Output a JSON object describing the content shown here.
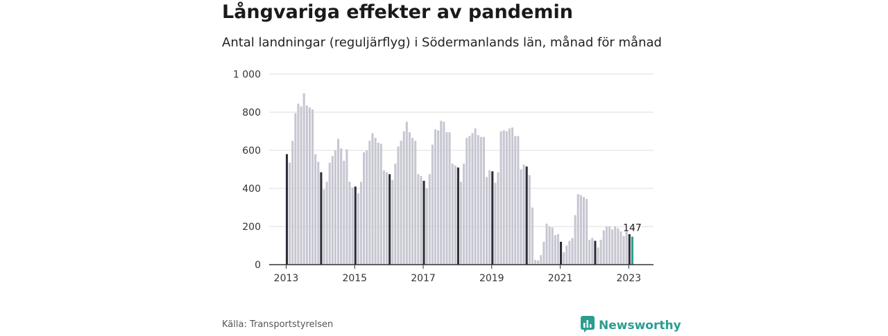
{
  "title": "Långvariga effekter av pandemin",
  "subtitle": "Antal landningar (reguljärflyg) i Södermanlands län, månad för månad",
  "source": "Källa: Transportstyrelsen",
  "brand": {
    "name": "Newsworthy",
    "icon": "newsworthy-logo-icon"
  },
  "colors": {
    "bar": "#c7c7d2",
    "january": "#2e2e38",
    "latest": "#2a9d8f",
    "grid": "#dddddd",
    "axis": "#333333"
  },
  "chart_data": {
    "type": "bar",
    "x_start": "2013-01",
    "x_tick_labels": [
      "2013",
      "2015",
      "2017",
      "2019",
      "2021",
      "2023"
    ],
    "ylim": [
      0,
      1000
    ],
    "y_ticks": [
      0,
      200,
      400,
      600,
      800,
      1000
    ],
    "y_tick_labels": [
      "0",
      "200",
      "400",
      "600",
      "800",
      "1 000"
    ],
    "grid": true,
    "series": [
      {
        "values": [
          580,
          535,
          650,
          795,
          845,
          830,
          900,
          835,
          825,
          815,
          580,
          540,
          485,
          395,
          435,
          535,
          570,
          600,
          660,
          610,
          545,
          605,
          435,
          405,
          410,
          375,
          435,
          590,
          600,
          650,
          690,
          665,
          640,
          635,
          495,
          485,
          475,
          445,
          530,
          620,
          650,
          700,
          750,
          695,
          665,
          650,
          475,
          465,
          440,
          400,
          475,
          630,
          710,
          705,
          755,
          750,
          695,
          695,
          530,
          520,
          510,
          435,
          530,
          665,
          675,
          690,
          715,
          680,
          670,
          670,
          460,
          495,
          490,
          430,
          485,
          700,
          705,
          700,
          715,
          720,
          675,
          675,
          500,
          525,
          515,
          470,
          300,
          25,
          22,
          50,
          120,
          215,
          200,
          195,
          155,
          160,
          120,
          65,
          100,
          125,
          140,
          260,
          370,
          365,
          355,
          345,
          130,
          140,
          125,
          90,
          130,
          180,
          200,
          200,
          185,
          200,
          190,
          175,
          150,
          175,
          160,
          147
        ],
        "highlight_months": [
          1
        ],
        "latest_label": "147"
      }
    ]
  }
}
